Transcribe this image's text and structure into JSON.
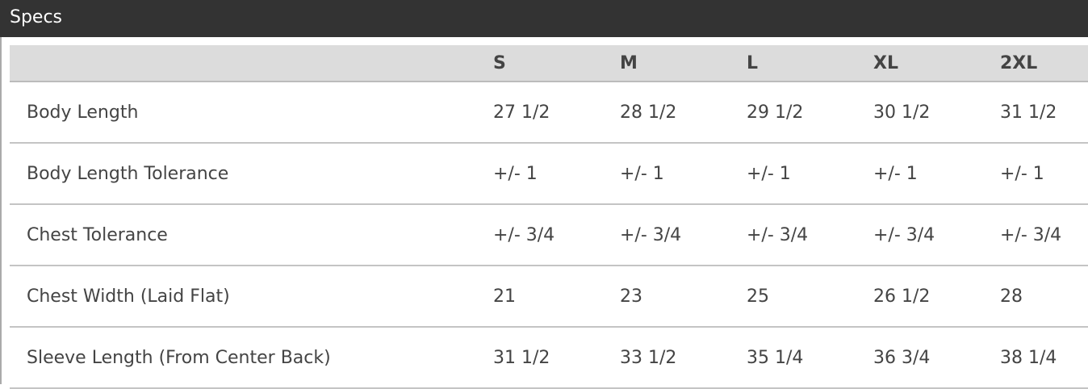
{
  "title": "Specs",
  "columns": [
    "S",
    "M",
    "L",
    "XL",
    "2XL"
  ],
  "rows": [
    {
      "label": "Body Length",
      "values": [
        "27 1/2",
        "28 1/2",
        "29 1/2",
        "30 1/2",
        "31 1/2"
      ]
    },
    {
      "label": "Body Length Tolerance",
      "values": [
        "+/- 1",
        "+/- 1",
        "+/- 1",
        "+/- 1",
        "+/- 1"
      ]
    },
    {
      "label": "Chest Tolerance",
      "values": [
        "+/- 3/4",
        "+/- 3/4",
        "+/- 3/4",
        "+/- 3/4",
        "+/- 3/4"
      ]
    },
    {
      "label": "Chest Width (Laid Flat)",
      "values": [
        "21",
        "23",
        "25",
        "26 1/2",
        "28"
      ]
    },
    {
      "label": "Sleeve Length (From Center Back)",
      "values": [
        "31 1/2",
        "33 1/2",
        "35 1/4",
        "36 3/4",
        "38 1/4"
      ]
    }
  ]
}
